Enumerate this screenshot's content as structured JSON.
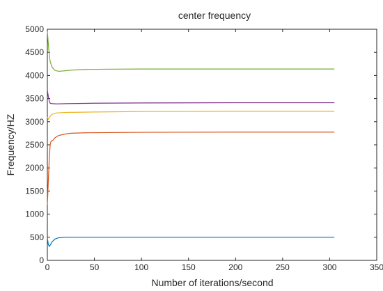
{
  "chart_data": {
    "type": "line",
    "title": "center frequency",
    "xlabel": "Number of iterations/second",
    "ylabel": "Frequency/HZ",
    "xlim": [
      0,
      350
    ],
    "ylim": [
      0,
      5000
    ],
    "xticks": [
      0,
      50,
      100,
      150,
      200,
      250,
      300,
      350
    ],
    "yticks": [
      0,
      500,
      1000,
      1500,
      2000,
      2500,
      3000,
      3500,
      4000,
      4500,
      5000
    ],
    "grid": false,
    "legend": "none",
    "series": [
      {
        "color": "#77AC30",
        "points": [
          [
            0,
            4950
          ],
          [
            1,
            4700
          ],
          [
            2,
            4450
          ],
          [
            3,
            4300
          ],
          [
            5,
            4180
          ],
          [
            8,
            4110
          ],
          [
            12,
            4090
          ],
          [
            18,
            4100
          ],
          [
            25,
            4115
          ],
          [
            40,
            4130
          ],
          [
            60,
            4135
          ],
          [
            100,
            4140
          ],
          [
            200,
            4140
          ],
          [
            305,
            4140
          ]
        ]
      },
      {
        "color": "#7E2F8E",
        "points": [
          [
            0,
            3680
          ],
          [
            1,
            3550
          ],
          [
            2,
            3450
          ],
          [
            3,
            3400
          ],
          [
            5,
            3390
          ],
          [
            10,
            3385
          ],
          [
            20,
            3390
          ],
          [
            50,
            3400
          ],
          [
            100,
            3405
          ],
          [
            200,
            3410
          ],
          [
            305,
            3410
          ]
        ]
      },
      {
        "color": "#EDB120",
        "points": [
          [
            0,
            3100
          ],
          [
            1,
            3050
          ],
          [
            2,
            3080
          ],
          [
            3,
            3120
          ],
          [
            5,
            3160
          ],
          [
            10,
            3190
          ],
          [
            20,
            3200
          ],
          [
            50,
            3210
          ],
          [
            100,
            3220
          ],
          [
            200,
            3225
          ],
          [
            305,
            3225
          ]
        ]
      },
      {
        "color": "#D95319",
        "points": [
          [
            0,
            1200
          ],
          [
            1,
            1700
          ],
          [
            2,
            2200
          ],
          [
            3,
            2500
          ],
          [
            4,
            2580
          ],
          [
            6,
            2600
          ],
          [
            8,
            2650
          ],
          [
            12,
            2700
          ],
          [
            18,
            2730
          ],
          [
            25,
            2750
          ],
          [
            40,
            2760
          ],
          [
            100,
            2770
          ],
          [
            200,
            2775
          ],
          [
            305,
            2775
          ]
        ]
      },
      {
        "color": "#0072BD",
        "points": [
          [
            0,
            480
          ],
          [
            1,
            350
          ],
          [
            2,
            300
          ],
          [
            3,
            330
          ],
          [
            5,
            400
          ],
          [
            8,
            460
          ],
          [
            12,
            490
          ],
          [
            20,
            500
          ],
          [
            50,
            500
          ],
          [
            100,
            500
          ],
          [
            200,
            500
          ],
          [
            305,
            500
          ]
        ]
      }
    ]
  }
}
